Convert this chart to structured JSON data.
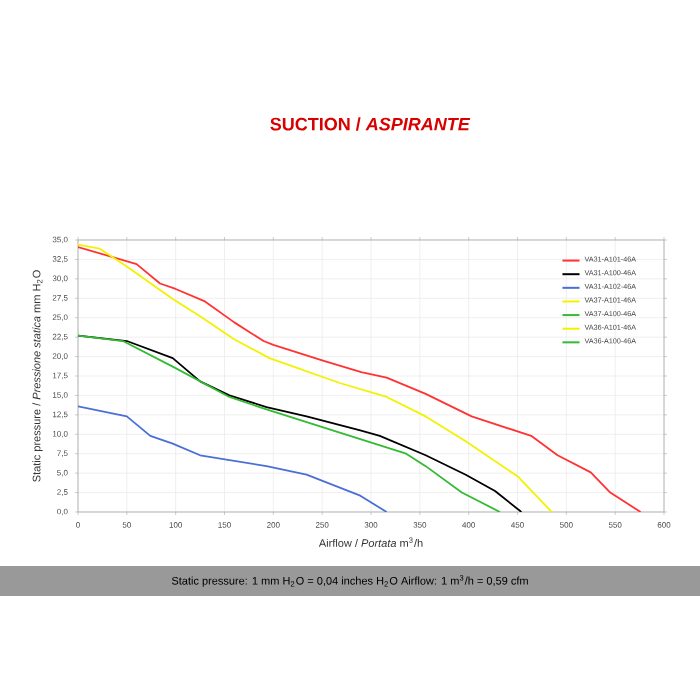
{
  "chart_data": {
    "type": "line",
    "title": "SUCTION / *ASPIRANTE*",
    "xlabel": "Airflow / *Portata* m$^{3}$/h",
    "ylabel": "Static pressure / *Pressione statica* mm H$_{2}$O",
    "annotations": [
      "Static pressure: 1 mm H$_{2}$O = 0,04 inches H$_{2}$O     Airflow: 1 m$^{3}$/h = 0,59 cfm"
    ],
    "xlim": [
      0,
      600
    ],
    "xticks": [
      0,
      50,
      100,
      150,
      200,
      250,
      300,
      350,
      400,
      450,
      500,
      550,
      600
    ],
    "ylim": [
      0,
      35
    ],
    "yticks": [
      {
        "value": 0,
        "label": "0,0"
      },
      {
        "value": 2.5,
        "label": "2,5"
      },
      {
        "value": 5,
        "label": "5,0"
      },
      {
        "value": 7.5,
        "label": "7,5"
      },
      {
        "value": 10,
        "label": "10,0"
      },
      {
        "value": 12.5,
        "label": "12,5"
      },
      {
        "value": 15,
        "label": "15,0"
      },
      {
        "value": 17.5,
        "label": "17,5"
      },
      {
        "value": 20,
        "label": "20,0"
      },
      {
        "value": 22.5,
        "label": "22,5"
      },
      {
        "value": 25,
        "label": "25,0"
      },
      {
        "value": 27.5,
        "label": "27,5"
      },
      {
        "value": 30,
        "label": "30,0"
      },
      {
        "value": 32.5,
        "label": "32,5"
      },
      {
        "value": 35,
        "label": "35,0"
      }
    ],
    "grid": true,
    "legend": "top right",
    "marker": "none",
    "line_style": "solid",
    "series": [
      {
        "name": "VA31-A101-46A",
        "color": "#ff3333",
        "x": [
          0,
          60,
          84,
          100,
          130,
          160,
          190,
          200,
          250,
          290,
          316,
          356,
          403,
          464,
          491,
          525,
          545,
          576
        ],
        "values": [
          34.1,
          31.9,
          29.4,
          28.7,
          27.1,
          24.4,
          22.0,
          21.5,
          19.5,
          18.0,
          17.3,
          15.2,
          12.3,
          9.8,
          7.3,
          5.1,
          2.5,
          0
        ]
      },
      {
        "name": "VA31-A100-46A",
        "color": "#000000",
        "x": [
          0,
          50,
          97,
          125,
          155,
          193,
          234,
          289,
          309,
          356,
          397,
          427,
          454
        ],
        "values": [
          22.7,
          22.0,
          19.8,
          16.8,
          15.0,
          13.5,
          12.3,
          10.5,
          9.8,
          7.3,
          4.8,
          2.7,
          0
        ]
      },
      {
        "name": "VA31-A102-46A",
        "color": "#4a6fd6",
        "x": [
          0,
          50,
          74,
          97,
          125,
          193,
          234,
          289,
          316
        ],
        "values": [
          13.6,
          12.3,
          9.8,
          8.8,
          7.3,
          5.9,
          4.8,
          2.1,
          0
        ]
      },
      {
        "name": "VA37-A101-46A",
        "color": "#f2f200",
        "x": [
          0,
          22,
          50,
          97,
          125,
          159,
          196,
          268,
          316,
          356,
          397,
          451,
          485
        ],
        "values": [
          34.4,
          33.9,
          31.6,
          27.4,
          25.2,
          22.3,
          19.8,
          16.6,
          14.8,
          12.3,
          9.1,
          4.5,
          0
        ]
      },
      {
        "name": "VA37-A100-46A",
        "color": "#33bb33",
        "x": [
          0,
          46,
          97,
          155,
          193,
          268,
          336,
          356,
          393,
          432
        ],
        "values": [
          22.7,
          22.0,
          18.7,
          14.8,
          13.2,
          10.2,
          7.5,
          5.9,
          2.5,
          0
        ]
      },
      {
        "name": "VA36-A101-46A",
        "color": "#f2f200"
      },
      {
        "name": "VA36-A100-46A",
        "color": "#33bb33"
      }
    ]
  }
}
